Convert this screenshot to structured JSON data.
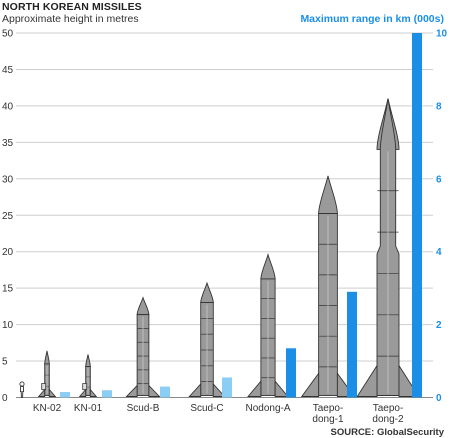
{
  "title": "NORTH KOREAN MISSILES",
  "subtitle": "Approximate height in metres",
  "right_axis_title": "Maximum range in km (000s)",
  "source": "SOURCE: GlobalSecurity",
  "colors": {
    "range_bar_dark": "#1b8fe6",
    "range_bar_light": "#8ccdf3",
    "missile_fill": "#9a9a9a",
    "missile_outline": "#333333",
    "grid": "#cfcfcf",
    "axis_text": "#333333"
  },
  "icons": [
    "person-silhouette-icon",
    "missile-icon"
  ],
  "chart_data": {
    "type": "bar",
    "title": "NORTH KOREAN MISSILES",
    "categories": [
      [
        "KN-02"
      ],
      [
        "KN-01"
      ],
      [
        "Scud-B"
      ],
      [
        "Scud-C"
      ],
      [
        "Nodong-A"
      ],
      [
        "Taepo-",
        "dong-1"
      ],
      [
        "Taepo-",
        "dong-2"
      ]
    ],
    "series": [
      {
        "name": "Approximate height in metres",
        "axis": "left",
        "mark": "missile silhouette",
        "values": [
          6.4,
          5.9,
          13.7,
          15.7,
          19.6,
          30.4,
          41
        ]
      },
      {
        "name": "Maximum range in km (000s)",
        "axis": "right",
        "mark": "bar",
        "values": [
          0.15,
          0.2,
          0.3,
          0.55,
          1.35,
          2.9,
          10
        ]
      }
    ],
    "left_axis": {
      "min": 0,
      "max": 50,
      "ticks": [
        0,
        5,
        10,
        15,
        20,
        25,
        30,
        35,
        40,
        45,
        50
      ]
    },
    "right_axis": {
      "min": 0,
      "max": 10,
      "ticks": [
        0,
        2,
        4,
        6,
        8,
        10
      ]
    },
    "grid": true
  }
}
